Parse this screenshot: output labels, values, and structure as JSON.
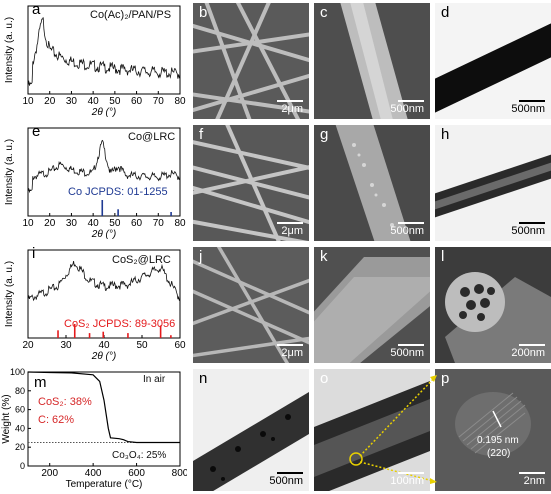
{
  "panels": {
    "a": {
      "label": "a",
      "legend": "Co(Ac)₂/PAN/PS",
      "ylabel": "Intensity (a. u.)",
      "xlabel": "2θ (°)"
    },
    "b": {
      "label": "b",
      "scale": "2μm"
    },
    "c": {
      "label": "c",
      "scale": "500nm"
    },
    "d": {
      "label": "d",
      "scale": "500nm"
    },
    "e": {
      "label": "e",
      "legend": "Co@LRC",
      "reference": "Co JCPDS: 01-1255",
      "ylabel": "Intensity (a. u.)",
      "xlabel": "2θ (°)"
    },
    "f": {
      "label": "f",
      "scale": "2μm"
    },
    "g": {
      "label": "g",
      "scale": "500nm"
    },
    "h": {
      "label": "h",
      "scale": "500nm"
    },
    "i": {
      "label": "i",
      "legend": "CoS₂@LRC",
      "reference": "CoS₂ JCPDS: 89-3056",
      "ylabel": "Intensity (a. u.)",
      "xlabel": "2θ (°)"
    },
    "j": {
      "label": "j",
      "scale": "2μm"
    },
    "k": {
      "label": "k",
      "scale": "500nm"
    },
    "l": {
      "label": "l",
      "scale": "200nm"
    },
    "m": {
      "label": "m",
      "condition": "In air",
      "anno1": "CoS₂: 38%",
      "anno2": "C: 62%",
      "anno3": "Co₃O₄: 25%",
      "ylabel": "Weight (%)",
      "xlabel": "Temperature (°C)"
    },
    "n": {
      "label": "n",
      "scale": "500nm"
    },
    "o": {
      "label": "o",
      "scale": "100nm"
    },
    "p": {
      "label": "p",
      "scale": "2nm",
      "dspacing": "0.195 nm",
      "plane": "(220)"
    }
  },
  "colors": {
    "reference_blue": "#1f3a93",
    "reference_red": "#e41a1c",
    "anno_red": "#d62728",
    "arrow_yellow": "#e8d000"
  },
  "chart_data": [
    {
      "type": "line",
      "panel": "a",
      "xlabel": "2θ (°)",
      "ylabel": "Intensity (a. u.)",
      "xlim": [
        10,
        80
      ],
      "xticks": [
        10,
        20,
        30,
        40,
        50,
        60,
        70,
        80
      ],
      "series": [
        {
          "x": [
            12,
            14,
            16,
            17,
            18,
            20,
            25,
            30,
            40,
            50,
            60,
            70,
            80
          ],
          "y": [
            0.3,
            0.55,
            0.85,
            0.9,
            0.7,
            0.5,
            0.4,
            0.34,
            0.28,
            0.24,
            0.21,
            0.19,
            0.17
          ]
        }
      ]
    },
    {
      "type": "line",
      "panel": "e",
      "xlabel": "2θ (°)",
      "ylabel": "Intensity (a. u.)",
      "xlim": [
        10,
        80
      ],
      "xticks": [
        10,
        20,
        30,
        40,
        50,
        60,
        70,
        80
      ],
      "series": [
        {
          "x": [
            12,
            20,
            25,
            30,
            35,
            40,
            44.2,
            48,
            51.5,
            55,
            60,
            70,
            76,
            80
          ],
          "y": [
            0.3,
            0.4,
            0.55,
            0.45,
            0.4,
            0.38,
            1.0,
            0.36,
            0.52,
            0.34,
            0.32,
            0.3,
            0.36,
            0.3
          ]
        }
      ],
      "reference_peaks": {
        "x": [
          44.2,
          51.5,
          75.9
        ],
        "h": [
          1.0,
          0.42,
          0.25
        ]
      }
    },
    {
      "type": "line",
      "panel": "i",
      "xlabel": "2θ (°)",
      "ylabel": "Intensity (a. u.)",
      "xlim": [
        20,
        60
      ],
      "xticks": [
        20,
        30,
        40,
        50,
        60
      ],
      "series": [
        {
          "x": [
            20,
            27.9,
            32.3,
            36.2,
            39.8,
            46.3,
            54.9,
            60
          ],
          "y": [
            0.3,
            0.55,
            1.0,
            0.65,
            0.55,
            0.58,
            0.9,
            0.32
          ]
        }
      ],
      "reference_peaks": {
        "x": [
          27.9,
          32.3,
          36.2,
          39.8,
          46.3,
          54.9,
          57.6
        ],
        "h": [
          0.55,
          1.0,
          0.35,
          0.45,
          0.35,
          0.9,
          0.2
        ]
      }
    },
    {
      "type": "line",
      "panel": "m",
      "xlabel": "Temperature (°C)",
      "ylabel": "Weight (%)",
      "xlim": [
        100,
        800
      ],
      "ylim": [
        0,
        100
      ],
      "xticks": [
        200,
        400,
        600,
        800
      ],
      "yticks": [
        0,
        20,
        40,
        60,
        80,
        100
      ],
      "series": [
        {
          "x": [
            100,
            200,
            300,
            400,
            430,
            450,
            470,
            480,
            520,
            540,
            560,
            600,
            700,
            800
          ],
          "y": [
            100,
            99.5,
            99,
            97,
            90,
            70,
            40,
            30,
            29,
            28,
            26,
            25,
            25,
            25
          ]
        }
      ],
      "reference_line_y": 25
    }
  ]
}
